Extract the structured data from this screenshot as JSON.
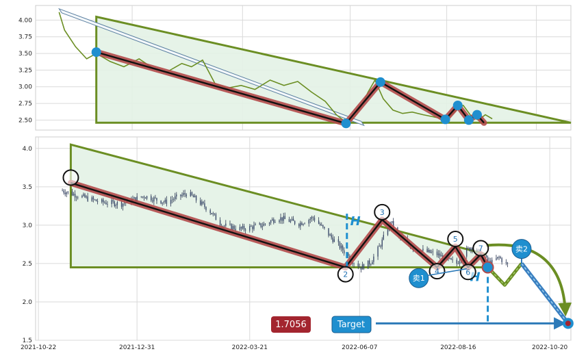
{
  "colors": {
    "fill_green": "#e3f2e6",
    "border_green": "#6b8e23",
    "zigzag_red": "#b34a4a",
    "accent_blue": "#1f8fcf",
    "target_red": "#a3252f"
  },
  "chart_data": [
    {
      "type": "line",
      "panel": "top",
      "xlim": [
        "2021-10-22",
        "2022-11-14"
      ],
      "ylim": [
        2.35,
        4.22
      ],
      "x_ticks": [],
      "y_ticks": [
        2.5,
        2.75,
        3.0,
        3.25,
        3.5,
        3.75,
        4.0
      ],
      "y_tick_labels": [
        "2.50",
        "2.75",
        "3.00",
        "3.25",
        "3.50",
        "3.75",
        "4.00"
      ],
      "grid": true,
      "price_line": {
        "x": [
          "2021-11-08",
          "2021-11-12",
          "2021-11-20",
          "2021-11-28",
          "2021-12-05",
          "2021-12-15",
          "2021-12-25",
          "2022-01-05",
          "2022-01-15",
          "2022-01-25",
          "2022-02-05",
          "2022-02-12",
          "2022-02-20",
          "2022-03-01",
          "2022-03-10",
          "2022-03-20",
          "2022-03-30",
          "2022-04-10",
          "2022-04-20",
          "2022-04-30",
          "2022-05-10",
          "2022-05-20",
          "2022-05-28",
          "2022-06-03",
          "2022-06-08",
          "2022-06-12",
          "2022-06-16",
          "2022-06-20",
          "2022-06-25",
          "2022-07-01",
          "2022-07-08",
          "2022-07-15",
          "2022-07-22",
          "2022-07-30",
          "2022-08-06",
          "2022-08-13",
          "2022-08-18",
          "2022-08-23",
          "2022-08-28",
          "2022-09-03",
          "2022-09-08",
          "2022-09-13",
          "2022-09-18"
        ],
        "y": [
          4.12,
          3.85,
          3.6,
          3.42,
          3.5,
          3.38,
          3.3,
          3.42,
          3.28,
          3.22,
          3.35,
          3.3,
          3.4,
          3.05,
          2.98,
          3.02,
          2.96,
          3.1,
          3.02,
          3.08,
          2.92,
          2.78,
          2.58,
          2.48,
          2.5,
          2.6,
          2.75,
          2.92,
          3.1,
          2.82,
          2.65,
          2.6,
          2.62,
          2.58,
          2.55,
          2.52,
          2.55,
          2.65,
          2.72,
          2.55,
          2.5,
          2.58,
          2.52
        ]
      },
      "triangle": {
        "points": [
          [
            "2021-12-05",
            4.05
          ],
          [
            "2021-12-05",
            2.46
          ],
          [
            "2022-11-14",
            2.46
          ]
        ]
      },
      "trend_channel": [
        [
          "2021-11-08",
          4.14
        ],
        [
          "2022-06-15",
          2.45
        ]
      ],
      "zigzag": [
        [
          "2021-12-05",
          3.52
        ],
        [
          "2022-06-04",
          2.45
        ],
        [
          "2022-06-29",
          3.07
        ],
        [
          "2022-08-15",
          2.51
        ],
        [
          "2022-08-24",
          2.72
        ],
        [
          "2022-09-01",
          2.5
        ],
        [
          "2022-09-07",
          2.58
        ],
        [
          "2022-09-12",
          2.46
        ]
      ],
      "pivots": [
        [
          "2021-12-05",
          3.52
        ],
        [
          "2022-06-04",
          2.45
        ],
        [
          "2022-06-29",
          3.07
        ],
        [
          "2022-08-15",
          2.51
        ],
        [
          "2022-08-24",
          2.72
        ],
        [
          "2022-09-01",
          2.5
        ],
        [
          "2022-09-07",
          2.58
        ]
      ]
    },
    {
      "type": "candlestick",
      "panel": "bottom",
      "xlim": [
        "2021-10-20",
        "2022-11-04"
      ],
      "ylim": [
        1.5,
        4.15
      ],
      "x_ticks": [
        "2021-10-22",
        "2021-12-31",
        "2022-03-21",
        "2022-06-07",
        "2022-08-16",
        "2022-10-20"
      ],
      "y_ticks": [
        1.5,
        2.0,
        2.5,
        3.0,
        3.5,
        4.0
      ],
      "y_tick_labels": [
        "1.5",
        "2.0",
        "2.5",
        "3.0",
        "3.5",
        "4.0"
      ],
      "grid": true,
      "price_trace": {
        "x": [
          "2021-11-08",
          "2021-11-20",
          "2021-12-05",
          "2021-12-20",
          "2022-01-05",
          "2022-01-20",
          "2022-02-05",
          "2022-02-20",
          "2022-03-01",
          "2022-03-15",
          "2022-03-30",
          "2022-04-10",
          "2022-04-25",
          "2022-05-05",
          "2022-05-15",
          "2022-05-25",
          "2022-06-01",
          "2022-06-08",
          "2022-06-15",
          "2022-06-22",
          "2022-06-29",
          "2022-07-05",
          "2022-07-15",
          "2022-07-25",
          "2022-08-01",
          "2022-08-08",
          "2022-08-15",
          "2022-08-20",
          "2022-08-26",
          "2022-09-02",
          "2022-09-08",
          "2022-09-14",
          "2022-09-20"
        ],
        "y": [
          3.45,
          3.38,
          3.3,
          3.28,
          3.38,
          3.3,
          3.42,
          3.2,
          3.0,
          2.95,
          3.0,
          3.1,
          3.02,
          3.1,
          2.9,
          2.7,
          2.55,
          2.45,
          2.52,
          2.75,
          3.05,
          2.85,
          2.7,
          2.65,
          2.62,
          2.55,
          2.5,
          2.65,
          2.72,
          2.6,
          2.5,
          2.58,
          2.48
        ]
      },
      "triangle": {
        "points": [
          [
            "2021-11-14",
            4.05
          ],
          [
            "2021-11-14",
            2.45
          ],
          [
            "2022-09-05",
            2.45
          ]
        ],
        "upper_end": [
          "2022-09-05",
          2.62
        ]
      },
      "zigzag": [
        [
          "2021-11-14",
          3.55
        ],
        [
          "2022-05-28",
          2.45
        ],
        [
          "2022-06-23",
          3.07
        ],
        [
          "2022-08-01",
          2.45
        ],
        [
          "2022-08-14",
          2.72
        ],
        [
          "2022-08-23",
          2.45
        ],
        [
          "2022-09-01",
          2.62
        ],
        [
          "2022-09-06",
          2.45
        ]
      ],
      "wave_labels": [
        {
          "label": "",
          "x": "2021-11-14",
          "y": 3.62
        },
        {
          "label": "2",
          "x": "2022-05-28",
          "y": 2.36
        },
        {
          "label": "3",
          "x": "2022-06-23",
          "y": 3.17
        },
        {
          "label": "4",
          "x": "2022-08-01",
          "y": 2.4
        },
        {
          "label": "5",
          "x": "2022-08-14",
          "y": 2.82
        },
        {
          "label": "6",
          "x": "2022-08-23",
          "y": 2.39
        },
        {
          "label": "7",
          "x": "2022-09-01",
          "y": 2.7
        }
      ],
      "h_markers": [
        {
          "label": "H",
          "x": "2022-06-04",
          "y": 3.0
        },
        {
          "label": "H",
          "x": "2022-08-28",
          "y": 2.27
        }
      ],
      "dashed_verticals": [
        {
          "x": "2022-05-29",
          "y_from": 3.15,
          "y_to": 2.45
        },
        {
          "x": "2022-09-06",
          "y_from": 2.45,
          "y_to": 1.72
        }
      ],
      "projection": [
        [
          "2022-09-06",
          2.45
        ],
        [
          "2022-09-18",
          2.22
        ],
        [
          "2022-09-30",
          2.5
        ],
        [
          "2022-11-02",
          1.72
        ]
      ],
      "sell_markers": [
        {
          "label": "卖1",
          "x": "2022-07-19",
          "y": 2.31,
          "target": [
            "2022-08-26",
            2.45
          ]
        },
        {
          "label": "卖2",
          "x": "2022-09-30",
          "y": 2.69
        }
      ],
      "target_point": {
        "x": "2022-11-02",
        "y": 1.72
      },
      "target_value": "1.7056",
      "target_text": "Target"
    }
  ]
}
